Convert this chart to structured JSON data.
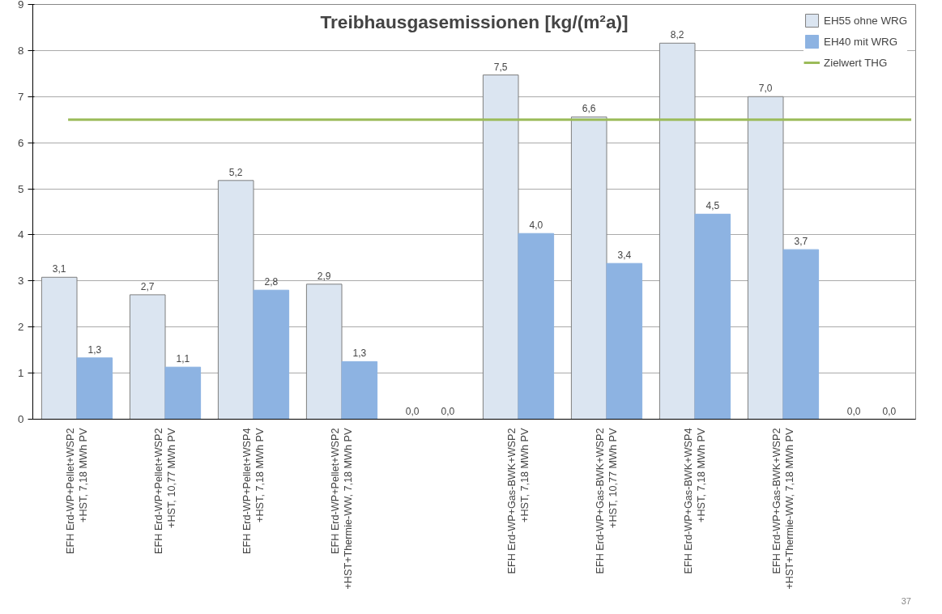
{
  "chart_data": {
    "type": "bar",
    "title": "Treibhausgasemissionen [kg/(m²a)]",
    "categories": [
      "EFH Erd-WP+Pellet+WSP2\n+HST, 7,18 MWh PV",
      "EFH Erd-WP+Pellet+WSP2\n+HST, 10,77 MWh PV",
      "EFH Erd-WP+Pellet+WSP4\n+HST, 7,18 MWh PV",
      "EFH Erd-WP+Pellet+WSP2\n+HST+Thermie-WW, 7,18 MWh PV",
      null,
      "EFH Erd-WP+Gas-BWK+WSP2\n+HST, 7,18 MWh PV",
      "EFH Erd-WP+Gas-BWK+WSP2\n+HST, 10,77 MWh PV",
      "EFH Erd-WP+Gas-BWK+WSP4\n+HST, 7,18 MWh PV",
      "EFH Erd-WP+Gas-BWK+WSP2\n+HST+Thermie-WW, 7,18 MWh PV",
      null
    ],
    "series": [
      {
        "name": "EH55 ohne WRG",
        "color": "#dbe5f1",
        "values": [
          3.08,
          2.7,
          5.18,
          2.93,
          0,
          7.47,
          6.56,
          8.16,
          7.0,
          0
        ],
        "value_labels": [
          "3,1",
          "2,7",
          "5,2",
          "2,9",
          "0,0",
          "7,5",
          "6,6",
          "8,2",
          "7,0",
          "0,0"
        ]
      },
      {
        "name": "EH40 mit WRG",
        "color": "#8db3e2",
        "values": [
          1.33,
          1.13,
          2.8,
          1.25,
          0,
          4.03,
          3.38,
          4.45,
          3.68,
          0
        ],
        "value_labels": [
          "1,3",
          "1,1",
          "2,8",
          "1,3",
          "0,0",
          "4,0",
          "3,4",
          "4,5",
          "3,7",
          "0,0"
        ]
      }
    ],
    "ref_lines": [
      {
        "axis": "y",
        "value": 6.5,
        "label": "Zielwert THG",
        "color": "#9bbb59"
      }
    ],
    "ylim": [
      0,
      9
    ],
    "yticks": [
      0,
      1,
      2,
      3,
      4,
      5,
      6,
      7,
      8,
      9
    ],
    "grid": "y",
    "legend": "top right",
    "annotations": [
      "37"
    ]
  }
}
